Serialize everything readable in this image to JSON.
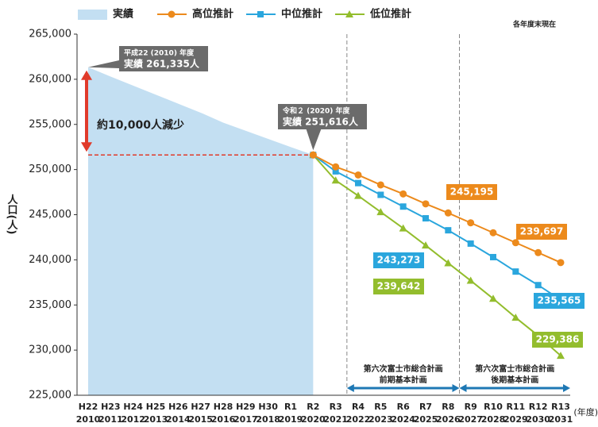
{
  "chart_data": {
    "type": "line",
    "legend_note": "各年度末現在",
    "y_label": "人口(人)",
    "x_unit": "(年度)",
    "categories": [
      "H22",
      "H23",
      "H24",
      "H25",
      "H26",
      "H27",
      "H28",
      "H29",
      "H30",
      "R1",
      "R2",
      "R3",
      "R4",
      "R5",
      "R6",
      "R7",
      "R8",
      "R9",
      "R10",
      "R11",
      "R12",
      "R13"
    ],
    "category_years": [
      "2010",
      "2011",
      "2012",
      "2013",
      "2014",
      "2015",
      "2016",
      "2017",
      "2018",
      "2019",
      "2020",
      "2021",
      "2022",
      "2023",
      "2024",
      "2025",
      "2026",
      "2027",
      "2028",
      "2029",
      "2030",
      "2031"
    ],
    "ylim": [
      225000,
      265000
    ],
    "yticks": [
      {
        "value": 225000,
        "label": "225,000"
      },
      {
        "value": 230000,
        "label": "230,000"
      },
      {
        "value": 235000,
        "label": "235,000"
      },
      {
        "value": 240000,
        "label": "240,000"
      },
      {
        "value": 245000,
        "label": "245,000"
      },
      {
        "value": 250000,
        "label": "250,000"
      },
      {
        "value": 255000,
        "label": "255,000"
      },
      {
        "value": 260000,
        "label": "260,000"
      },
      {
        "value": 265000,
        "label": "265,000"
      }
    ],
    "series": [
      {
        "name": "実績",
        "kind": "area",
        "color": "#c3dff2",
        "values": [
          261335,
          260300,
          259300,
          258300,
          257300,
          256300,
          255200,
          254300,
          253400,
          252500,
          251616,
          null,
          null,
          null,
          null,
          null,
          null,
          null,
          null,
          null,
          null,
          null
        ]
      },
      {
        "name": "高位推計",
        "kind": "line",
        "marker": "circle",
        "color": "#ec8a1c",
        "values": [
          null,
          null,
          null,
          null,
          null,
          null,
          null,
          null,
          null,
          null,
          251616,
          250300,
          249400,
          248300,
          247300,
          246200,
          245195,
          244100,
          243000,
          241900,
          240800,
          239697
        ],
        "value_labels": [
          null,
          null,
          null,
          null,
          null,
          null,
          null,
          null,
          null,
          null,
          null,
          null,
          null,
          null,
          null,
          null,
          "245,195",
          null,
          null,
          null,
          null,
          "239,697"
        ]
      },
      {
        "name": "中位推計",
        "kind": "line",
        "marker": "square",
        "color": "#2aa6dd",
        "values": [
          null,
          null,
          null,
          null,
          null,
          null,
          null,
          null,
          null,
          null,
          251616,
          249800,
          248500,
          247200,
          245900,
          244600,
          243273,
          241800,
          240300,
          238700,
          237200,
          235565
        ],
        "value_labels": [
          null,
          null,
          null,
          null,
          null,
          null,
          null,
          null,
          null,
          null,
          null,
          null,
          null,
          null,
          null,
          null,
          "243,273",
          null,
          null,
          null,
          null,
          "235,565"
        ]
      },
      {
        "name": "低位推計",
        "kind": "line",
        "marker": "triangle",
        "color": "#93bd2d",
        "values": [
          null,
          null,
          null,
          null,
          null,
          null,
          null,
          null,
          null,
          null,
          251616,
          248800,
          247100,
          245300,
          243500,
          241600,
          239642,
          237700,
          235700,
          233600,
          231600,
          229386
        ],
        "value_labels": [
          null,
          null,
          null,
          null,
          null,
          null,
          null,
          null,
          null,
          null,
          null,
          null,
          null,
          null,
          null,
          null,
          "239,642",
          null,
          null,
          null,
          null,
          "229,386"
        ]
      }
    ],
    "callouts": [
      {
        "line1": "平成22 (2010) 年度",
        "line2": "実績 261,335人"
      },
      {
        "line1": "令和２ (2020) 年度",
        "line2": "実績 251,616人"
      }
    ],
    "decrease_note": "約10,000人減少",
    "plans": [
      {
        "line1": "第六次富士市総合計画",
        "line2": "前期基本計画"
      },
      {
        "line1": "第六次富士市総合計画",
        "line2": "後期基本計画"
      }
    ]
  }
}
